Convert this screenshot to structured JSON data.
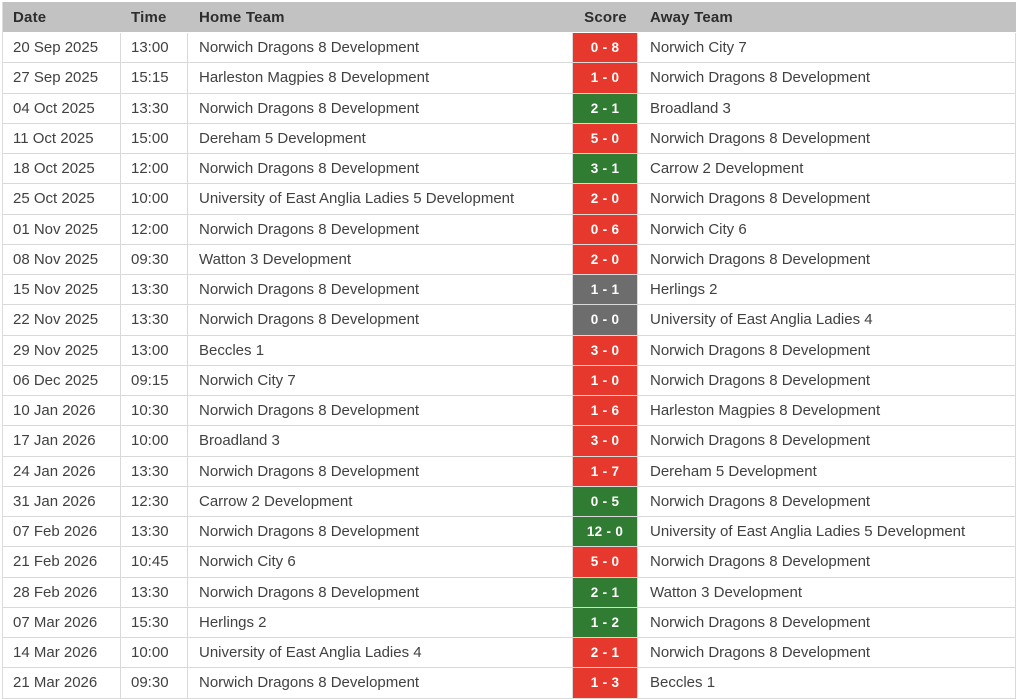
{
  "colors": {
    "win": "#317c33",
    "loss": "#e6382c",
    "draw": "#6d6d6d",
    "header_bg": "#c2c2c2",
    "border": "#d9d9d9",
    "body_text": "#414141",
    "header_text": "#2d2d2d",
    "score_text": "#ffffff"
  },
  "table": {
    "columns": [
      {
        "key": "date",
        "label": "Date"
      },
      {
        "key": "time",
        "label": "Time"
      },
      {
        "key": "home",
        "label": "Home Team"
      },
      {
        "key": "score",
        "label": "Score"
      },
      {
        "key": "away",
        "label": "Away Team"
      }
    ],
    "rows": [
      {
        "date": "20 Sep 2025",
        "time": "13:00",
        "home": "Norwich Dragons 8 Development",
        "score": "0 - 8",
        "result": "loss",
        "away": "Norwich City 7"
      },
      {
        "date": "27 Sep 2025",
        "time": "15:15",
        "home": "Harleston Magpies 8 Development",
        "score": "1 - 0",
        "result": "loss",
        "away": "Norwich Dragons 8 Development"
      },
      {
        "date": "04 Oct 2025",
        "time": "13:30",
        "home": "Norwich Dragons 8 Development",
        "score": "2 - 1",
        "result": "win",
        "away": "Broadland 3"
      },
      {
        "date": "11 Oct 2025",
        "time": "15:00",
        "home": "Dereham 5 Development",
        "score": "5 - 0",
        "result": "loss",
        "away": "Norwich Dragons 8 Development"
      },
      {
        "date": "18 Oct 2025",
        "time": "12:00",
        "home": "Norwich Dragons 8 Development",
        "score": "3 - 1",
        "result": "win",
        "away": "Carrow 2 Development"
      },
      {
        "date": "25 Oct 2025",
        "time": "10:00",
        "home": "University of East Anglia Ladies 5 Development",
        "score": "2 - 0",
        "result": "loss",
        "away": "Norwich Dragons 8 Development"
      },
      {
        "date": "01 Nov 2025",
        "time": "12:00",
        "home": "Norwich Dragons 8 Development",
        "score": "0 - 6",
        "result": "loss",
        "away": "Norwich City 6"
      },
      {
        "date": "08 Nov 2025",
        "time": "09:30",
        "home": "Watton 3 Development",
        "score": "2 - 0",
        "result": "loss",
        "away": "Norwich Dragons 8 Development"
      },
      {
        "date": "15 Nov 2025",
        "time": "13:30",
        "home": "Norwich Dragons 8 Development",
        "score": "1 - 1",
        "result": "draw",
        "away": "Herlings 2"
      },
      {
        "date": "22 Nov 2025",
        "time": "13:30",
        "home": "Norwich Dragons 8 Development",
        "score": "0 - 0",
        "result": "draw",
        "away": "University of East Anglia Ladies 4"
      },
      {
        "date": "29 Nov 2025",
        "time": "13:00",
        "home": "Beccles 1",
        "score": "3 - 0",
        "result": "loss",
        "away": "Norwich Dragons 8 Development"
      },
      {
        "date": "06 Dec 2025",
        "time": "09:15",
        "home": "Norwich City 7",
        "score": "1 - 0",
        "result": "loss",
        "away": "Norwich Dragons 8 Development"
      },
      {
        "date": "10 Jan 2026",
        "time": "10:30",
        "home": "Norwich Dragons 8 Development",
        "score": "1 - 6",
        "result": "loss",
        "away": "Harleston Magpies 8 Development"
      },
      {
        "date": "17 Jan 2026",
        "time": "10:00",
        "home": "Broadland 3",
        "score": "3 - 0",
        "result": "loss",
        "away": "Norwich Dragons 8 Development"
      },
      {
        "date": "24 Jan 2026",
        "time": "13:30",
        "home": "Norwich Dragons 8 Development",
        "score": "1 - 7",
        "result": "loss",
        "away": "Dereham 5 Development"
      },
      {
        "date": "31 Jan 2026",
        "time": "12:30",
        "home": "Carrow 2 Development",
        "score": "0 - 5",
        "result": "win",
        "away": "Norwich Dragons 8 Development"
      },
      {
        "date": "07 Feb 2026",
        "time": "13:30",
        "home": "Norwich Dragons 8 Development",
        "score": "12 - 0",
        "result": "win",
        "away": "University of East Anglia Ladies 5 Development"
      },
      {
        "date": "21 Feb 2026",
        "time": "10:45",
        "home": "Norwich City 6",
        "score": "5 - 0",
        "result": "loss",
        "away": "Norwich Dragons 8 Development"
      },
      {
        "date": "28 Feb 2026",
        "time": "13:30",
        "home": "Norwich Dragons 8 Development",
        "score": "2 - 1",
        "result": "win",
        "away": "Watton 3 Development"
      },
      {
        "date": "07 Mar 2026",
        "time": "15:30",
        "home": "Herlings 2",
        "score": "1 - 2",
        "result": "win",
        "away": "Norwich Dragons 8 Development"
      },
      {
        "date": "14 Mar 2026",
        "time": "10:00",
        "home": "University of East Anglia Ladies 4",
        "score": "2 - 1",
        "result": "loss",
        "away": "Norwich Dragons 8 Development"
      },
      {
        "date": "21 Mar 2026",
        "time": "09:30",
        "home": "Norwich Dragons 8 Development",
        "score": "1 - 3",
        "result": "loss",
        "away": "Beccles 1"
      }
    ]
  }
}
